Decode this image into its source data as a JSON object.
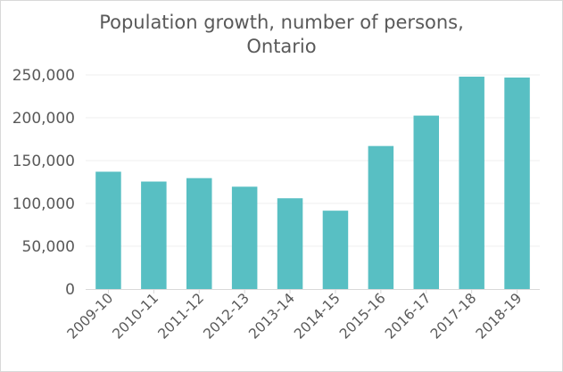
{
  "chart_data": {
    "type": "bar",
    "title_lines": [
      "Population growth, number of persons,",
      "Ontario"
    ],
    "categories": [
      "2009-10",
      "2010-11",
      "2011-12",
      "2012-13",
      "2013-14",
      "2014-15",
      "2015-16",
      "2016-17",
      "2017-18",
      "2018-19"
    ],
    "values": [
      137000,
      125500,
      129500,
      119500,
      106000,
      91500,
      167000,
      202500,
      248000,
      247000
    ],
    "ylim": [
      0,
      250000
    ],
    "yticks": [
      0,
      50000,
      100000,
      150000,
      200000,
      250000
    ],
    "ytick_labels": [
      "0",
      "50,000",
      "100,000",
      "150,000",
      "200,000",
      "250,000"
    ],
    "grid": true,
    "bar_color": "#58bfc3",
    "grid_color": "#efefef",
    "axis_color": "#d9d9d9",
    "text_color": "#595959"
  }
}
